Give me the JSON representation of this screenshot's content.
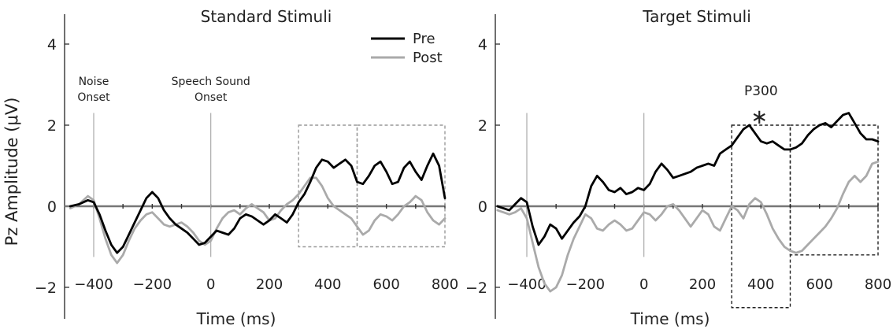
{
  "figure": {
    "ylabel": "Pz Amplitude (μV)"
  },
  "chart_data": [
    {
      "type": "line",
      "title": "Standard Stimuli",
      "xlabel": "Time (ms)",
      "ylabel": "Pz Amplitude (μV)",
      "xlim": [
        -500,
        800
      ],
      "ylim": [
        -2.7,
        4.4
      ],
      "xticks": [
        -400,
        -200,
        0,
        200,
        400,
        600,
        800
      ],
      "yticks": [
        -2,
        0,
        2,
        4
      ],
      "legend": {
        "placement": "top-right",
        "entries": [
          "Pre",
          "Post"
        ]
      },
      "annotations": [
        {
          "text": [
            "Noise",
            "Onset"
          ],
          "x": -400
        },
        {
          "text": [
            "Speech Sound",
            "Onset"
          ],
          "x": 0
        }
      ],
      "vlines": [
        -400,
        0
      ],
      "boxes": [
        {
          "x": [
            300,
            500
          ],
          "y": [
            -1.0,
            2.0
          ]
        },
        {
          "x": [
            500,
            800
          ],
          "y": [
            -1.0,
            2.0
          ]
        }
      ],
      "series": [
        {
          "name": "Pre",
          "color": "#000000",
          "x": [
            -480,
            -450,
            -420,
            -400,
            -380,
            -360,
            -340,
            -320,
            -300,
            -280,
            -260,
            -240,
            -220,
            -200,
            -180,
            -160,
            -140,
            -120,
            -100,
            -80,
            -60,
            -40,
            -20,
            0,
            20,
            40,
            60,
            80,
            100,
            120,
            140,
            160,
            180,
            200,
            220,
            240,
            260,
            280,
            300,
            320,
            340,
            360,
            380,
            400,
            420,
            440,
            460,
            480,
            500,
            520,
            540,
            560,
            580,
            600,
            620,
            640,
            660,
            680,
            700,
            720,
            740,
            760,
            780,
            800
          ],
          "values": [
            0,
            0.05,
            0.15,
            0.1,
            -0.2,
            -0.6,
            -0.95,
            -1.15,
            -1.0,
            -0.7,
            -0.4,
            -0.1,
            0.2,
            0.35,
            0.2,
            -0.1,
            -0.3,
            -0.45,
            -0.55,
            -0.65,
            -0.8,
            -0.95,
            -0.9,
            -0.75,
            -0.6,
            -0.65,
            -0.7,
            -0.55,
            -0.3,
            -0.2,
            -0.25,
            -0.35,
            -0.45,
            -0.35,
            -0.2,
            -0.3,
            -0.4,
            -0.2,
            0.1,
            0.3,
            0.6,
            0.95,
            1.15,
            1.1,
            0.95,
            1.05,
            1.15,
            1.0,
            0.6,
            0.55,
            0.75,
            1.0,
            1.1,
            0.85,
            0.55,
            0.6,
            0.95,
            1.1,
            0.85,
            0.65,
            1.0,
            1.3,
            1.0,
            0.2
          ]
        },
        {
          "name": "Post",
          "color": "#aaaaaa",
          "x": [
            -480,
            -450,
            -420,
            -400,
            -380,
            -360,
            -340,
            -320,
            -300,
            -280,
            -260,
            -240,
            -220,
            -200,
            -180,
            -160,
            -140,
            -120,
            -100,
            -80,
            -60,
            -40,
            -20,
            0,
            20,
            40,
            60,
            80,
            100,
            120,
            140,
            160,
            180,
            200,
            220,
            240,
            260,
            280,
            300,
            320,
            340,
            360,
            380,
            400,
            420,
            440,
            460,
            480,
            500,
            520,
            540,
            560,
            580,
            600,
            620,
            640,
            660,
            680,
            700,
            720,
            740,
            760,
            780,
            800
          ],
          "values": [
            -0.05,
            0.05,
            0.25,
            0.15,
            -0.3,
            -0.8,
            -1.2,
            -1.4,
            -1.2,
            -0.85,
            -0.55,
            -0.35,
            -0.2,
            -0.15,
            -0.3,
            -0.45,
            -0.5,
            -0.45,
            -0.4,
            -0.5,
            -0.65,
            -0.85,
            -0.95,
            -0.85,
            -0.55,
            -0.3,
            -0.15,
            -0.1,
            -0.2,
            -0.05,
            0.05,
            -0.05,
            -0.15,
            -0.35,
            -0.3,
            -0.1,
            0.05,
            0.15,
            0.3,
            0.5,
            0.7,
            0.7,
            0.5,
            0.2,
            0.0,
            -0.1,
            -0.2,
            -0.3,
            -0.5,
            -0.7,
            -0.6,
            -0.35,
            -0.2,
            -0.25,
            -0.35,
            -0.2,
            0.0,
            0.1,
            0.25,
            0.15,
            -0.15,
            -0.35,
            -0.45,
            -0.3
          ]
        }
      ]
    },
    {
      "type": "line",
      "title": "Target Stimuli",
      "xlabel": "Time (ms)",
      "ylabel": "",
      "xlim": [
        -500,
        800
      ],
      "ylim": [
        -2.7,
        4.4
      ],
      "xticks": [
        -400,
        -200,
        0,
        200,
        400,
        600,
        800
      ],
      "yticks": [
        -2,
        0,
        2,
        4
      ],
      "annotations": [
        {
          "text": "P300",
          "x": 400
        },
        {
          "text": "∗",
          "x": 400
        }
      ],
      "vlines": [
        -400,
        0
      ],
      "boxes": [
        {
          "x": [
            300,
            500
          ],
          "y": [
            -2.5,
            2.0
          ]
        },
        {
          "x": [
            500,
            800
          ],
          "y": [
            -1.2,
            2.0
          ]
        }
      ],
      "series": [
        {
          "name": "Pre",
          "color": "#000000",
          "x": [
            -500,
            -480,
            -460,
            -440,
            -420,
            -400,
            -380,
            -360,
            -340,
            -320,
            -300,
            -280,
            -260,
            -240,
            -220,
            -200,
            -180,
            -160,
            -140,
            -120,
            -100,
            -80,
            -60,
            -40,
            -20,
            0,
            20,
            40,
            60,
            80,
            100,
            120,
            140,
            160,
            180,
            200,
            220,
            240,
            260,
            280,
            300,
            320,
            340,
            360,
            380,
            400,
            420,
            440,
            460,
            480,
            500,
            520,
            540,
            560,
            580,
            600,
            620,
            640,
            660,
            680,
            700,
            720,
            740,
            760,
            780,
            800
          ],
          "values": [
            0,
            -0.05,
            -0.1,
            0.05,
            0.2,
            0.1,
            -0.5,
            -0.95,
            -0.75,
            -0.45,
            -0.55,
            -0.8,
            -0.6,
            -0.4,
            -0.25,
            0.0,
            0.5,
            0.75,
            0.6,
            0.4,
            0.35,
            0.45,
            0.3,
            0.35,
            0.45,
            0.4,
            0.55,
            0.85,
            1.05,
            0.9,
            0.7,
            0.75,
            0.8,
            0.85,
            0.95,
            1.0,
            1.05,
            1.0,
            1.3,
            1.4,
            1.5,
            1.7,
            1.9,
            2.0,
            1.8,
            1.6,
            1.55,
            1.6,
            1.5,
            1.4,
            1.4,
            1.45,
            1.55,
            1.75,
            1.9,
            2.0,
            2.05,
            1.95,
            2.1,
            2.25,
            2.3,
            2.05,
            1.8,
            1.65,
            1.65,
            1.6
          ]
        },
        {
          "name": "Post",
          "color": "#aaaaaa",
          "x": [
            -500,
            -480,
            -460,
            -440,
            -420,
            -400,
            -380,
            -360,
            -340,
            -320,
            -300,
            -280,
            -260,
            -240,
            -220,
            -200,
            -180,
            -160,
            -140,
            -120,
            -100,
            -80,
            -60,
            -40,
            -20,
            0,
            20,
            40,
            60,
            80,
            100,
            120,
            140,
            160,
            180,
            200,
            220,
            240,
            260,
            280,
            300,
            320,
            340,
            360,
            380,
            400,
            420,
            440,
            460,
            480,
            500,
            520,
            540,
            560,
            580,
            600,
            620,
            640,
            660,
            680,
            700,
            720,
            740,
            760,
            780,
            800
          ],
          "values": [
            -0.1,
            -0.15,
            -0.2,
            -0.15,
            -0.05,
            -0.3,
            -0.9,
            -1.5,
            -1.9,
            -2.1,
            -2.0,
            -1.7,
            -1.2,
            -0.8,
            -0.5,
            -0.2,
            -0.3,
            -0.55,
            -0.6,
            -0.45,
            -0.35,
            -0.45,
            -0.6,
            -0.55,
            -0.35,
            -0.15,
            -0.2,
            -0.35,
            -0.2,
            0.0,
            0.05,
            -0.1,
            -0.3,
            -0.5,
            -0.3,
            -0.1,
            -0.2,
            -0.5,
            -0.6,
            -0.3,
            0.0,
            -0.1,
            -0.3,
            0.05,
            0.2,
            0.1,
            -0.2,
            -0.55,
            -0.8,
            -1.0,
            -1.1,
            -1.15,
            -1.1,
            -0.95,
            -0.8,
            -0.65,
            -0.5,
            -0.3,
            -0.05,
            0.3,
            0.6,
            0.75,
            0.6,
            0.75,
            1.05,
            1.1
          ]
        }
      ]
    }
  ]
}
